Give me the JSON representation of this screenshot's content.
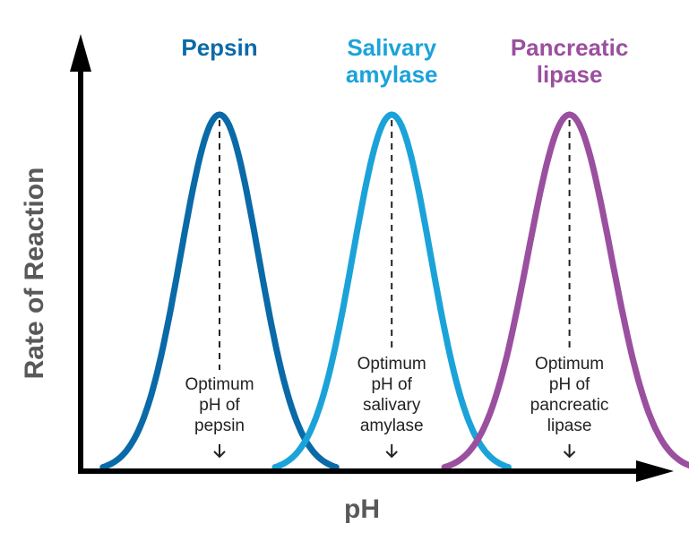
{
  "chart_data": {
    "type": "line",
    "xlabel": "pH",
    "ylabel": "Rate of Reaction",
    "grid": false,
    "axis_ticks": false,
    "series": [
      {
        "name": "Pepsin",
        "label_lines": [
          "Pepsin"
        ],
        "color": "#0a6aa8",
        "peak_position": 0.25,
        "spread": 0.07,
        "peak_rate": 1.0,
        "annotation_lines": [
          "Optimum",
          "pH of",
          "pepsin"
        ]
      },
      {
        "name": "Salivary amylase",
        "label_lines": [
          "Salivary",
          "amylase"
        ],
        "color": "#1ba3d9",
        "peak_position": 0.56,
        "spread": 0.07,
        "peak_rate": 1.0,
        "annotation_lines": [
          "Optimum",
          "pH of",
          "salivary",
          "amylase"
        ]
      },
      {
        "name": "Pancreatic lipase",
        "label_lines": [
          "Pancreatic",
          "lipase"
        ],
        "color": "#9b4f9f",
        "peak_position": 0.88,
        "spread": 0.075,
        "peak_rate": 1.0,
        "annotation_lines": [
          "Optimum",
          "pH of",
          "pancreatic",
          "lipase"
        ]
      }
    ]
  }
}
